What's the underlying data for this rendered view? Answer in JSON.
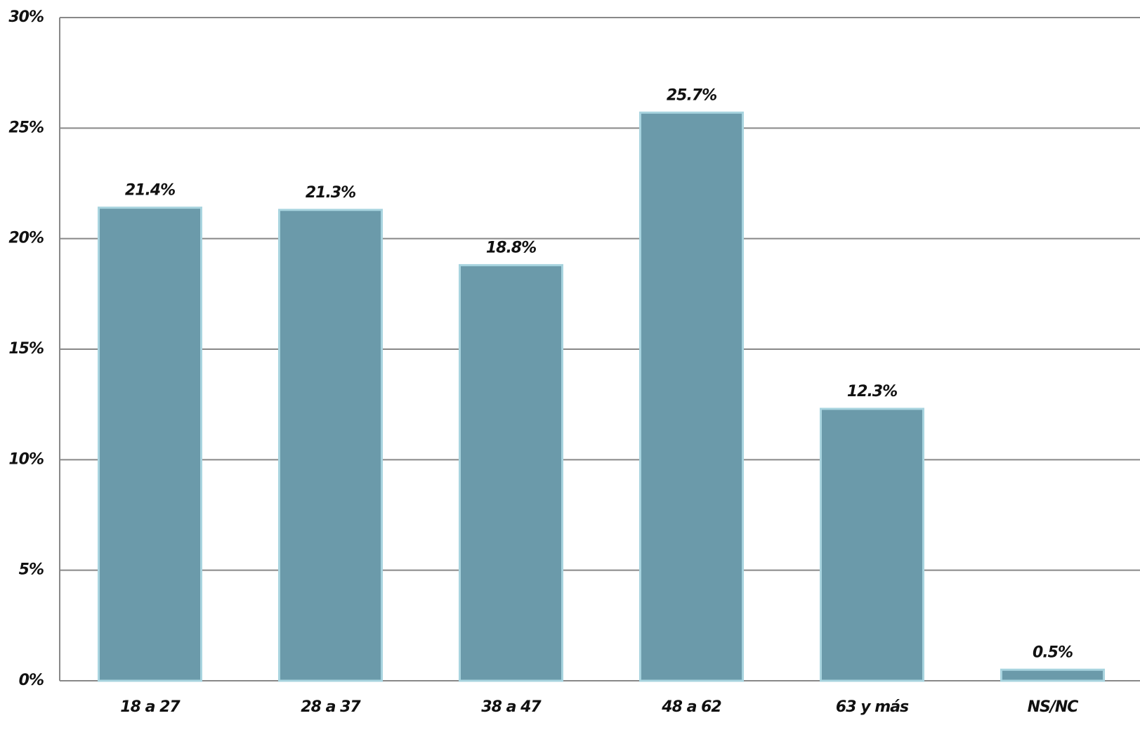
{
  "chart_data": {
    "type": "bar",
    "categories": [
      "18 a 27",
      "28 a 37",
      "38 a 47",
      "48 a 62",
      "63 y más",
      "NS/NC"
    ],
    "values": [
      21.4,
      21.3,
      18.8,
      25.7,
      12.3,
      0.5
    ],
    "value_labels": [
      "21.4%",
      "21.3%",
      "18.8%",
      "25.7%",
      "12.3%",
      "0.5%"
    ],
    "color": "#6b9aaa",
    "ylim": [
      0,
      30
    ],
    "yticks": [
      {
        "value": 0,
        "label": "0%"
      },
      {
        "value": 5,
        "label": "5%"
      },
      {
        "value": 10,
        "label": "10%"
      },
      {
        "value": 15,
        "label": "15%"
      },
      {
        "value": 20,
        "label": "20%"
      },
      {
        "value": 25,
        "label": "25%"
      },
      {
        "value": 30,
        "label": "30%"
      }
    ],
    "grid": true
  }
}
